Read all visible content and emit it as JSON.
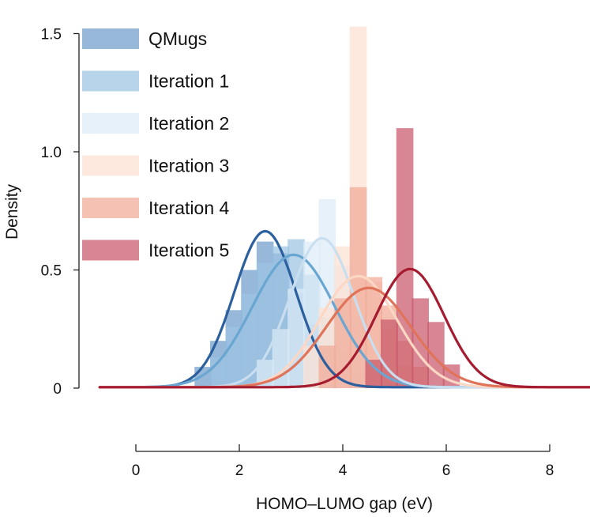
{
  "chart_data": {
    "type": "bar",
    "title": "",
    "xlabel": "HOMO–LUMO gap (eV)",
    "ylabel": "Density",
    "xlim": [
      -0.7,
      8.8
    ],
    "ylim": [
      0,
      1.55
    ],
    "x_ticks": [
      "0",
      "2",
      "4",
      "6",
      "8"
    ],
    "y_ticks": [
      "0",
      "0.5",
      "1.0",
      "1.5"
    ],
    "grid": false,
    "legend_position": "top-left",
    "bin_width": 0.33,
    "series": [
      {
        "name": "QMugs",
        "color": "#2c5f9e",
        "bar_color": "#6f9ccb",
        "bins": [
          [
            1.3,
            0.09
          ],
          [
            1.6,
            0.2
          ],
          [
            1.9,
            0.33
          ],
          [
            2.2,
            0.5
          ],
          [
            2.5,
            0.62
          ],
          [
            2.8,
            0.57
          ],
          [
            3.1,
            0.4
          ],
          [
            3.4,
            0.27
          ],
          [
            3.7,
            0.13
          ],
          [
            4.0,
            0.06
          ],
          [
            4.3,
            0.03
          ]
        ],
        "curve": {
          "mu": 2.5,
          "sigma": 0.6,
          "peak": 0.66
        }
      },
      {
        "name": "Iteration 1",
        "color": "#6aa6d2",
        "bar_color": "#9cc3e2",
        "bins": [
          [
            1.6,
            0.13
          ],
          [
            1.9,
            0.26
          ],
          [
            2.2,
            0.4
          ],
          [
            2.5,
            0.53
          ],
          [
            2.8,
            0.6
          ],
          [
            3.1,
            0.63
          ],
          [
            3.4,
            0.48
          ],
          [
            3.7,
            0.3
          ],
          [
            4.0,
            0.16
          ],
          [
            4.3,
            0.07
          ]
        ],
        "curve": {
          "mu": 3.05,
          "sigma": 0.8,
          "peak": 0.56
        }
      },
      {
        "name": "Iteration 2",
        "color": "#c9dff0",
        "bar_color": "#dcebf6",
        "bins": [
          [
            2.5,
            0.12
          ],
          [
            2.8,
            0.25
          ],
          [
            3.1,
            0.42
          ],
          [
            3.4,
            0.62
          ],
          [
            3.7,
            0.8
          ],
          [
            4.0,
            0.52
          ],
          [
            4.3,
            0.3
          ],
          [
            4.6,
            0.12
          ]
        ],
        "curve": {
          "mu": 3.6,
          "sigma": 0.62,
          "peak": 0.63
        }
      },
      {
        "name": "Iteration 3",
        "color": "#fbd7c4",
        "bar_color": "#fde0d2",
        "bins": [
          [
            3.4,
            0.18
          ],
          [
            3.7,
            0.34
          ],
          [
            4.0,
            0.6
          ],
          [
            4.3,
            1.53
          ],
          [
            4.6,
            0.45
          ],
          [
            4.9,
            0.25
          ],
          [
            5.2,
            0.1
          ]
        ],
        "curve": {
          "mu": 4.3,
          "sigma": 0.75,
          "peak": 0.47
        }
      },
      {
        "name": "Iteration 4",
        "color": "#e0745a",
        "bar_color": "#f0a996",
        "bins": [
          [
            3.7,
            0.18
          ],
          [
            4.0,
            0.38
          ],
          [
            4.3,
            0.85
          ],
          [
            4.6,
            0.47
          ],
          [
            4.9,
            0.35
          ],
          [
            5.2,
            0.2
          ],
          [
            5.5,
            0.09
          ]
        ],
        "curve": {
          "mu": 4.5,
          "sigma": 0.82,
          "peak": 0.42
        }
      },
      {
        "name": "Iteration 5",
        "color": "#a51c30",
        "bar_color": "#c9586a",
        "bins": [
          [
            4.6,
            0.12
          ],
          [
            4.9,
            0.29
          ],
          [
            5.2,
            1.1
          ],
          [
            5.5,
            0.38
          ],
          [
            5.8,
            0.28
          ],
          [
            6.1,
            0.1
          ]
        ],
        "curve": {
          "mu": 5.3,
          "sigma": 0.66,
          "peak": 0.5
        }
      }
    ]
  }
}
